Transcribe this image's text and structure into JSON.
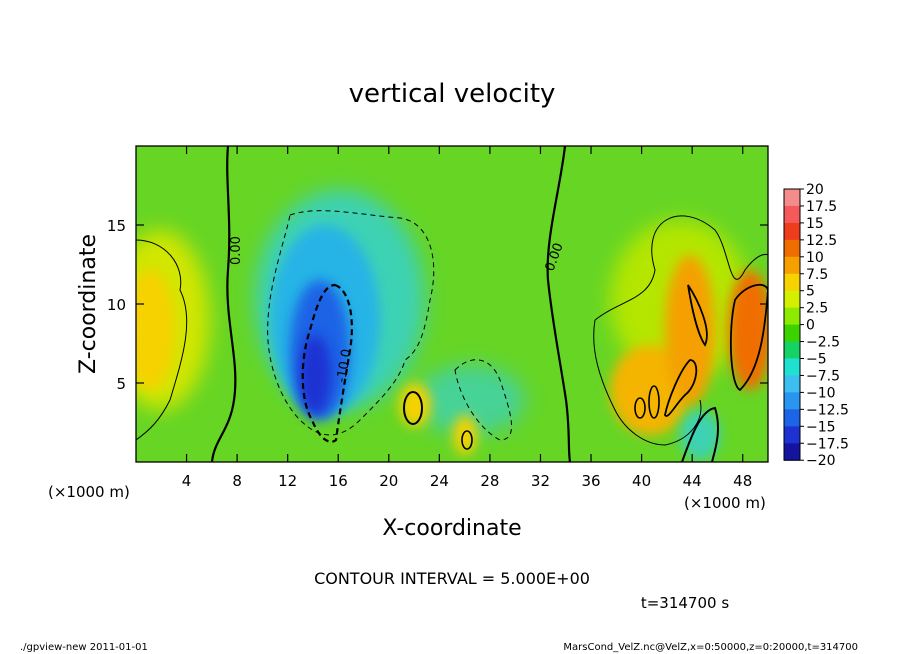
{
  "chart_data": {
    "type": "heatmap",
    "title": "vertical velocity",
    "xlabel": "X-coordinate",
    "ylabel": "Z-coordinate",
    "x_unit_left": "(×1000 m)",
    "x_unit_right": "(×1000 m)",
    "x_ticks": [
      "4",
      "8",
      "12",
      "16",
      "20",
      "24",
      "28",
      "32",
      "36",
      "40",
      "44",
      "48"
    ],
    "x_tick_values": [
      4,
      8,
      12,
      16,
      20,
      24,
      28,
      32,
      36,
      40,
      44,
      48
    ],
    "y_ticks": [
      "5",
      "10",
      "15"
    ],
    "y_tick_values": [
      5,
      10,
      15
    ],
    "xlim": [
      0,
      50
    ],
    "ylim": [
      0,
      20
    ],
    "colorbar_labels": [
      "20",
      "17.5",
      "15",
      "12.5",
      "10",
      "7.5",
      "5",
      "2.5",
      "0",
      "−2.5",
      "−5",
      "−7.5",
      "−10",
      "−12.5",
      "−15",
      "−17.5",
      "−20"
    ],
    "colorbar_colors": [
      "#f58c8c",
      "#f55a5a",
      "#f03c1e",
      "#f06e00",
      "#f5a000",
      "#f5d200",
      "#d2f000",
      "#8ceb00",
      "#3cd200",
      "#14d264",
      "#1ee1d2",
      "#3cbef0",
      "#2896f0",
      "#1e64e6",
      "#1e32d2",
      "#1414a0",
      "#6e1eb4"
    ],
    "contour_interval_text": "CONTOUR INTERVAL = 5.000E+00",
    "contour_labels": [
      "0.00",
      "0.00",
      "-10.0"
    ],
    "blobs": [
      {
        "x": 1.5,
        "z": 9.0,
        "w": 0.18,
        "h": 0.9,
        "value": 8
      },
      {
        "x": 14.5,
        "z": 8.0,
        "w": 0.08,
        "h": 0.42,
        "value": -10
      },
      {
        "x": 15.0,
        "z": 5.5,
        "w": 0.04,
        "h": 0.22,
        "value": -15
      },
      {
        "x": 22.0,
        "z": 3.5,
        "w": 0.03,
        "h": 0.12,
        "value": 7
      },
      {
        "x": 26.5,
        "z": 2.0,
        "w": 0.02,
        "h": 0.08,
        "value": 8
      },
      {
        "x": 42.0,
        "z": 6.0,
        "w": 0.1,
        "h": 0.55,
        "value": 8
      },
      {
        "x": 47.5,
        "z": 8.0,
        "w": 0.05,
        "h": 0.3,
        "value": 12
      }
    ]
  },
  "time_label": "t=314700 s",
  "footer": {
    "left": "./gpview-new   2011-01-01",
    "right": "MarsCond_VelZ.nc@VelZ,x=0:50000,z=0:20000,t=314700"
  }
}
